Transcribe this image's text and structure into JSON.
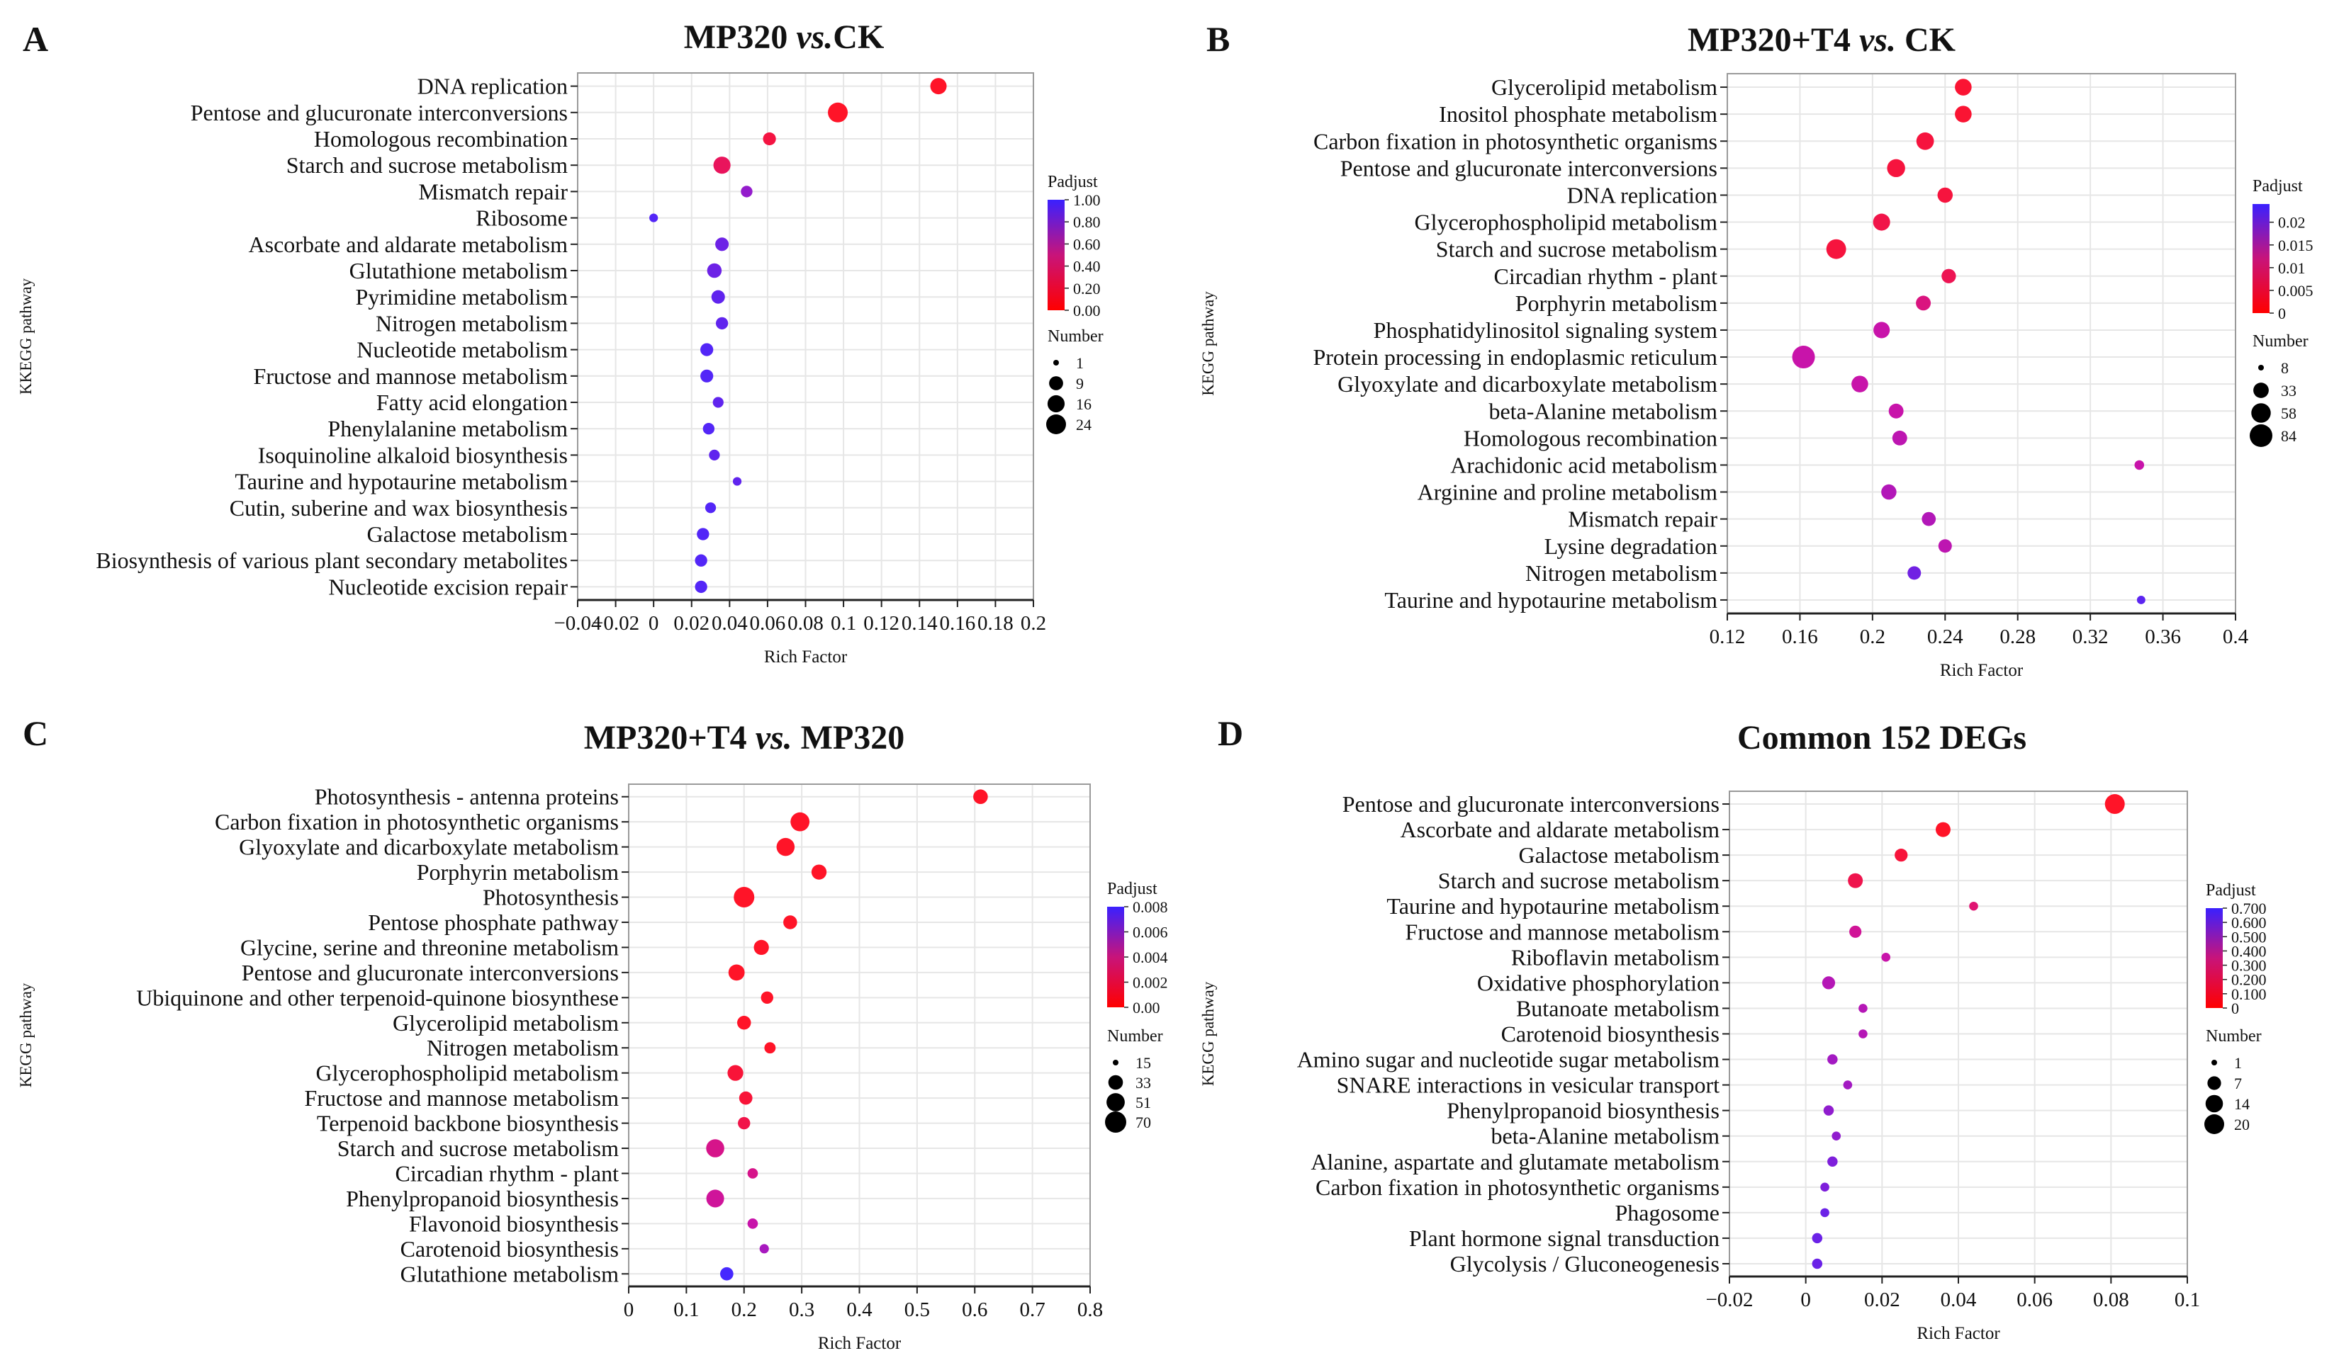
{
  "figure": {
    "title": "KEGG enrichment bubble plots"
  },
  "chart_data": [
    {
      "type": "scatter",
      "panel": "A",
      "title": "MP320 vs.CK",
      "title_prefix": "MP320 ",
      "title_italic": "vs.",
      "title_suffix": "CK",
      "xlabel": "Rich Factor",
      "ylabel": "KKEGG pathway",
      "xlim": [
        -0.04,
        0.2
      ],
      "xticks": [
        -0.04,
        -0.02,
        0,
        0.02,
        0.04,
        0.06,
        0.08,
        0.1,
        0.12,
        0.14,
        0.16,
        0.18,
        0.2
      ],
      "xtick_labels": [
        "−0.04",
        "−0.02",
        "0",
        "0.02",
        "0.04",
        "0.06",
        "0.08",
        "0.1",
        "0.12",
        "0.14",
        "0.16",
        "0.18",
        "0.2"
      ],
      "categories": [
        "DNA replication",
        "Pentose and glucuronate interconversions",
        "Homologous recombination",
        "Starch and sucrose metabolism",
        "Mismatch repair",
        "Ribosome",
        "Ascorbate and aldarate metabolism",
        "Glutathione metabolism",
        "Pyrimidine metabolism",
        "Nitrogen metabolism",
        "Nucleotide metabolism",
        "Fructose and mannose metabolism",
        "Fatty acid elongation",
        "Phenylalanine metabolism",
        "Isoquinoline alkaloid biosynthesis",
        "Taurine and hypotaurine metabolism",
        "Cutin, suberine and wax biosynthesis",
        "Galactose metabolism",
        "Biosynthesis of various plant secondary metabolites",
        "Nucleotide excision repair"
      ],
      "x": [
        0.15,
        0.097,
        0.061,
        0.036,
        0.049,
        0.0,
        0.036,
        0.032,
        0.034,
        0.036,
        0.028,
        0.028,
        0.034,
        0.029,
        0.032,
        0.044,
        0.03,
        0.026,
        0.025,
        0.025
      ],
      "number": [
        14,
        24,
        7,
        16,
        5,
        2,
        8,
        10,
        8,
        6,
        7,
        7,
        4,
        5,
        4,
        2,
        4,
        6,
        6,
        6
      ],
      "padjust": [
        0.0,
        0.0,
        0.1,
        0.2,
        0.7,
        0.95,
        0.85,
        0.85,
        0.9,
        0.9,
        0.95,
        0.95,
        0.9,
        0.95,
        0.9,
        0.9,
        0.95,
        0.95,
        0.95,
        0.95
      ],
      "color_legend": {
        "title": "Padjust",
        "min": 0.0,
        "max": 1.0,
        "labels": [
          "1.00",
          "0.80",
          "0.60",
          "0.40",
          "0.20",
          "0.00"
        ]
      },
      "size_legend": {
        "title": "Number",
        "values": [
          1,
          9,
          16,
          24
        ],
        "labels": [
          "1",
          "9",
          "16",
          "24"
        ]
      }
    },
    {
      "type": "scatter",
      "panel": "B",
      "title": "MP320+T4 vs. CK",
      "title_prefix": "MP320+T4 ",
      "title_italic": "vs.",
      "title_suffix": " CK",
      "xlabel": "Rich Factor",
      "ylabel": "KEGG pathway",
      "xlim": [
        0.12,
        0.4
      ],
      "xticks": [
        0.12,
        0.16,
        0.2,
        0.24,
        0.28,
        0.32,
        0.36,
        0.4
      ],
      "xtick_labels": [
        "0.12",
        "0.16",
        "0.2",
        "0.24",
        "0.28",
        "0.32",
        "0.36",
        "0.4"
      ],
      "categories": [
        "Glycerolipid metabolism",
        "Inositol phosphate metabolism",
        "Carbon fixation in photosynthetic organisms",
        "Pentose and glucuronate interconversions",
        "DNA replication",
        "Glycerophospholipid metabolism",
        "Starch and sucrose metabolism",
        "Circadian rhythm - plant",
        "Porphyrin metabolism",
        "Phosphatidylinositol signaling system",
        "Protein processing in endoplasmic reticulum",
        "Glyoxylate and dicarboxylate metabolism",
        "beta-Alanine metabolism",
        "Homologous recombination",
        "Arachidonic acid metabolism",
        "Arginine and proline metabolism",
        "Mismatch repair",
        "Lysine degradation",
        "Nitrogen metabolism",
        "Taurine and hypotaurine metabolism"
      ],
      "x": [
        0.25,
        0.25,
        0.229,
        0.213,
        0.24,
        0.205,
        0.18,
        0.242,
        0.228,
        0.205,
        0.162,
        0.193,
        0.213,
        0.215,
        0.347,
        0.209,
        0.231,
        0.24,
        0.223,
        0.348
      ],
      "number": [
        40,
        40,
        45,
        48,
        32,
        42,
        60,
        28,
        30,
        38,
        84,
        40,
        30,
        30,
        12,
        32,
        26,
        24,
        24,
        10
      ],
      "padjust": [
        0.001,
        0.001,
        0.002,
        0.002,
        0.002,
        0.003,
        0.002,
        0.004,
        0.008,
        0.012,
        0.012,
        0.012,
        0.012,
        0.013,
        0.012,
        0.014,
        0.014,
        0.013,
        0.02,
        0.022
      ],
      "color_legend": {
        "title": "Padjust",
        "min": 0.0,
        "max": 0.024,
        "labels": [
          "0.02",
          "0.015",
          "0.01",
          "0.005",
          "0"
        ],
        "label_values": [
          0.02,
          0.015,
          0.01,
          0.005,
          0
        ]
      },
      "size_legend": {
        "title": "Number",
        "values": [
          8,
          33,
          58,
          84
        ],
        "labels": [
          "8",
          "33",
          "58",
          "84"
        ]
      }
    },
    {
      "type": "scatter",
      "panel": "C",
      "title": "MP320+T4 vs. MP320",
      "title_prefix": "MP320+T4 ",
      "title_italic": "vs.",
      "title_suffix": " MP320",
      "xlabel": "Rich Factor",
      "ylabel": "KEGG pathway",
      "xlim": [
        0,
        0.8
      ],
      "xticks": [
        0,
        0.1,
        0.2,
        0.3,
        0.4,
        0.5,
        0.6,
        0.7,
        0.8
      ],
      "xtick_labels": [
        "0",
        "0.1",
        "0.2",
        "0.3",
        "0.4",
        "0.5",
        "0.6",
        "0.7",
        "0.8"
      ],
      "categories": [
        "Photosynthesis - antenna proteins",
        "Carbon fixation in photosynthetic organisms",
        "Glyoxylate and dicarboxylate metabolism",
        "Porphyrin metabolism",
        "Photosynthesis",
        "Pentose phosphate pathway",
        "Glycine, serine and threonine metabolism",
        "Pentose and glucuronate interconversions",
        "Ubiquinone and other terpenoid-quinone biosynthese",
        "Glycerolipid metabolism",
        "Nitrogen metabolism",
        "Glycerophospholipid metabolism",
        "Fructose and mannose metabolism",
        "Terpenoid backbone biosynthesis",
        "Starch and sucrose metabolism",
        "Circadian rhythm - plant",
        "Phenylpropanoid biosynthesis",
        "Flavonoid biosynthesis",
        "Carotenoid biosynthesis",
        "Glutathione metabolism"
      ],
      "x": [
        0.61,
        0.297,
        0.272,
        0.33,
        0.2,
        0.28,
        0.23,
        0.187,
        0.24,
        0.2,
        0.245,
        0.185,
        0.203,
        0.2,
        0.15,
        0.215,
        0.15,
        0.215,
        0.235,
        0.17
      ],
      "number": [
        33,
        55,
        50,
        35,
        65,
        30,
        35,
        40,
        25,
        30,
        22,
        38,
        28,
        25,
        50,
        20,
        48,
        20,
        18,
        28
      ],
      "padjust": [
        0.0,
        0.0,
        0.0,
        0.0,
        0.0,
        0.0,
        0.0,
        0.0,
        0.0,
        0.0,
        0.0,
        0.0005,
        0.0005,
        0.001,
        0.003,
        0.003,
        0.0035,
        0.004,
        0.005,
        0.008
      ],
      "color_legend": {
        "title": "Padjust",
        "min": 0.0,
        "max": 0.008,
        "labels": [
          "0.008",
          "0.006",
          "0.004",
          "0.002",
          "0.00"
        ]
      },
      "size_legend": {
        "title": "Number",
        "values": [
          15,
          33,
          51,
          70
        ],
        "labels": [
          "15",
          "33",
          "51",
          "70"
        ]
      }
    },
    {
      "type": "scatter",
      "panel": "D",
      "title": "Common 152 DEGs",
      "title_prefix": "Common 152 DEGs",
      "title_italic": "",
      "title_suffix": "",
      "xlabel": "Rich Factor",
      "ylabel": "KEGG pathway",
      "xlim": [
        -0.02,
        0.1
      ],
      "xticks": [
        -0.02,
        0,
        0.02,
        0.04,
        0.06,
        0.08,
        0.1
      ],
      "xtick_labels": [
        "−0.02",
        "0",
        "0.02",
        "0.04",
        "0.06",
        "0.08",
        "0.1"
      ],
      "categories": [
        "Pentose and glucuronate interconversions",
        "Ascorbate and aldarate metabolism",
        "Galactose metabolism",
        "Starch and sucrose metabolism",
        "Taurine and hypotaurine metabolism",
        "Fructose and mannose metabolism",
        "Riboflavin metabolism",
        "Oxidative phosphorylation",
        "Butanoate metabolism",
        "Carotenoid biosynthesis",
        "Amino sugar and nucleotide sugar metabolism",
        "SNARE interactions in vesicular transport",
        "Phenylpropanoid biosynthesis",
        "beta-Alanine metabolism",
        "Alanine, aspartate and glutamate metabolism",
        "Carbon fixation in photosynthetic organisms",
        "Phagosome",
        "Plant hormone signal transduction",
        "Glycolysis / Gluconeogenesis"
      ],
      "x": [
        0.081,
        0.036,
        0.025,
        0.013,
        0.044,
        0.013,
        0.021,
        0.006,
        0.015,
        0.015,
        0.007,
        0.011,
        0.006,
        0.008,
        0.007,
        0.005,
        0.005,
        0.003,
        0.003
      ],
      "number": [
        20,
        9,
        6,
        9,
        2,
        5,
        2,
        6,
        2,
        2,
        3,
        2,
        3,
        2,
        3,
        2,
        2,
        3,
        3
      ],
      "padjust": [
        0.0,
        0.0,
        0.05,
        0.1,
        0.2,
        0.3,
        0.35,
        0.4,
        0.4,
        0.4,
        0.45,
        0.45,
        0.5,
        0.5,
        0.55,
        0.55,
        0.6,
        0.6,
        0.6
      ],
      "color_legend": {
        "title": "Padjust",
        "min": 0.0,
        "max": 0.7,
        "labels": [
          "0.700",
          "0.600",
          "0.500",
          "0.400",
          "0.300",
          "0.200",
          "0.100",
          "0"
        ],
        "label_values": [
          0.7,
          0.6,
          0.5,
          0.4,
          0.3,
          0.2,
          0.1,
          0
        ]
      },
      "size_legend": {
        "title": "Number",
        "values": [
          1,
          7,
          14,
          20
        ],
        "labels": [
          "1",
          "7",
          "14",
          "20"
        ]
      }
    }
  ]
}
